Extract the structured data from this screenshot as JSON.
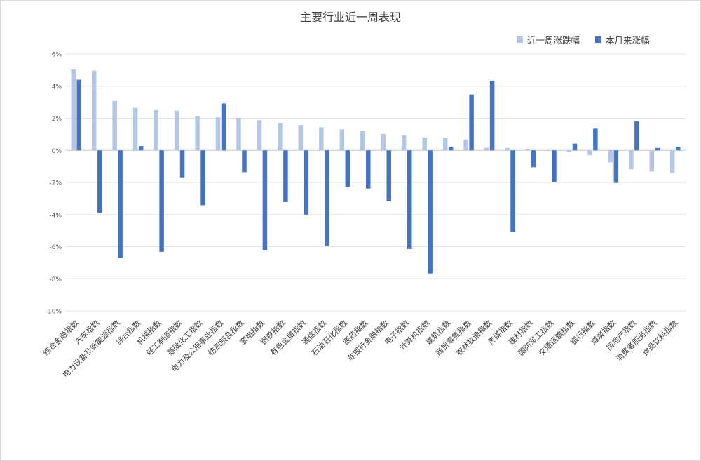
{
  "chart_data": {
    "type": "bar",
    "title": "主要行业近一周表现",
    "xlabel": "",
    "ylabel": "",
    "ylim": [
      -10,
      6
    ],
    "y_ticks": [
      "6%",
      "4%",
      "2%",
      "0%",
      "-2%",
      "-4%",
      "-6%",
      "-8%",
      "-10%"
    ],
    "y_tick_values": [
      6,
      4,
      2,
      0,
      -2,
      -4,
      -6,
      -8,
      -10
    ],
    "grid": true,
    "legend_position": "top-right",
    "categories": [
      "综合金融指数",
      "汽车指数",
      "电力设备及新能源指数",
      "综合指数",
      "机械指数",
      "轻工制造指数",
      "基础化工指数",
      "电力及公用事业指数",
      "纺织服装指数",
      "家电指数",
      "钢铁指数",
      "有色金属指数",
      "通信指数",
      "石油石化指数",
      "医药指数",
      "非银行金融指数",
      "电子指数",
      "计算机指数",
      "建筑指数",
      "商贸零售指数",
      "农林牧渔指数",
      "传媒指数",
      "建材指数",
      "国防军工指数",
      "交通运输指数",
      "银行指数",
      "煤炭指数",
      "房地产指数",
      "消费者服务指数",
      "食品饮料指数"
    ],
    "series": [
      {
        "name": "近一周涨跌幅",
        "color": "#b4c7e7",
        "values": [
          5.05,
          4.97,
          3.08,
          2.65,
          2.5,
          2.47,
          2.12,
          2.06,
          2.03,
          1.88,
          1.68,
          1.58,
          1.44,
          1.3,
          1.23,
          1.02,
          0.96,
          0.8,
          0.78,
          0.68,
          0.16,
          0.15,
          0.06,
          -0.02,
          -0.12,
          -0.3,
          -0.75,
          -1.18,
          -1.32,
          -1.4
        ]
      },
      {
        "name": "本月来涨幅",
        "color": "#4472c4",
        "values": [
          4.4,
          -3.88,
          -6.72,
          0.27,
          -6.32,
          -1.68,
          -3.42,
          2.92,
          -1.36,
          -6.22,
          -3.22,
          -4.0,
          -5.95,
          -2.27,
          -2.38,
          -3.18,
          -6.15,
          -7.67,
          0.22,
          3.48,
          4.34,
          -5.07,
          -1.05,
          -1.97,
          0.42,
          1.35,
          -2.03,
          1.8,
          0.15,
          0.22
        ]
      }
    ]
  }
}
